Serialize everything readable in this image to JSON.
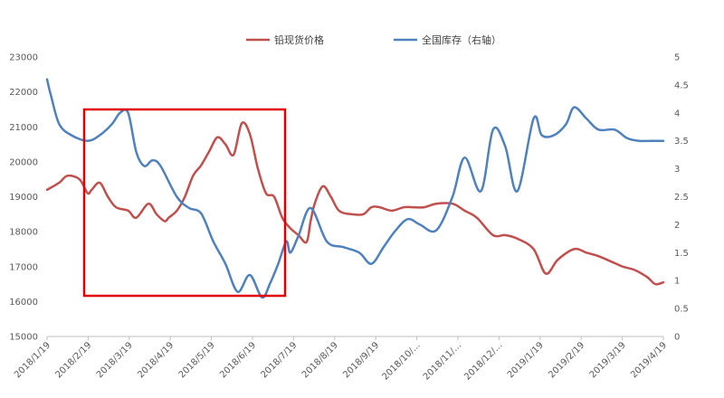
{
  "chart_data": {
    "type": "line",
    "title": "",
    "xlabel": "",
    "ylabel": "",
    "ylim": [
      15000,
      23000
    ],
    "y2lim": [
      0,
      5
    ],
    "yticks": [
      15000,
      16000,
      17000,
      18000,
      19000,
      20000,
      21000,
      22000,
      23000
    ],
    "y2ticks": [
      "0",
      "0.5",
      "1",
      "1.5",
      "2",
      "2.5",
      "3",
      "3.5",
      "4",
      "4.5",
      "5"
    ],
    "x_tick_labels": [
      "2018/1/19",
      "2018/2/19",
      "2018/3/19",
      "2018/4/19",
      "2018/5/19",
      "2018/6/19",
      "2018/7/19",
      "2018/8/19",
      "2018/9/19",
      "2018/10/...",
      "2018/11/...",
      "2018/12/...",
      "2019/1/19",
      "2019/2/19",
      "2019/3/19",
      "2019/4/19"
    ],
    "grid": false,
    "legend_position": "top",
    "series": [
      {
        "name": "铅现货价格",
        "axis": "left",
        "color": "#C0504D",
        "x": [
          0,
          0.3,
          0.5,
          0.8,
          1,
          1.1,
          1.3,
          1.5,
          1.7,
          2,
          2.2,
          2.5,
          2.7,
          2.9,
          3,
          3.2,
          3.4,
          3.6,
          3.8,
          4,
          4.2,
          4.4,
          4.6,
          4.8,
          5,
          5.2,
          5.4,
          5.6,
          5.8,
          6,
          6.2,
          6.4,
          6.5,
          6.6,
          6.8,
          7,
          7.2,
          7.5,
          7.8,
          8,
          8.2,
          8.5,
          8.8,
          9,
          9.3,
          9.6,
          10,
          10.3,
          10.6,
          11,
          11.3,
          11.6,
          12,
          12.3,
          12.6,
          13,
          13.3,
          13.6,
          14,
          14.2,
          14.5,
          14.8,
          15,
          15.2
        ],
        "values": [
          19200,
          19400,
          19600,
          19500,
          19100,
          19200,
          19400,
          19000,
          18700,
          18600,
          18400,
          18800,
          18500,
          18300,
          18400,
          18600,
          19000,
          19600,
          19900,
          20300,
          20700,
          20500,
          20200,
          21100,
          20800,
          19800,
          19100,
          19000,
          18400,
          18100,
          17900,
          17700,
          18300,
          18800,
          19300,
          19000,
          18600,
          18500,
          18500,
          18700,
          18700,
          18600,
          18700,
          18700,
          18700,
          18800,
          18800,
          18600,
          18400,
          17900,
          17900,
          17800,
          17500,
          16800,
          17200,
          17500,
          17400,
          17300,
          17100,
          17000,
          16900,
          16700,
          16500,
          16550
        ]
      },
      {
        "name": "全国库存（右轴）",
        "axis": "right",
        "color": "#4F81BD",
        "x": [
          0,
          0.1,
          0.3,
          0.6,
          1,
          1.3,
          1.6,
          1.8,
          2,
          2.2,
          2.4,
          2.6,
          2.8,
          3.2,
          3.5,
          3.8,
          4.1,
          4.4,
          4.7,
          5,
          5.3,
          5.5,
          5.7,
          5.9,
          6,
          6.2,
          6.5,
          6.9,
          7.3,
          7.7,
          8,
          8.3,
          8.6,
          8.9,
          9.2,
          9.6,
          10,
          10.3,
          10.7,
          11,
          11.3,
          11.6,
          12,
          12.2,
          12.5,
          12.8,
          13,
          13.3,
          13.6,
          14,
          14.3,
          14.6,
          15,
          15.2
        ],
        "values": [
          4.6,
          4.3,
          3.8,
          3.6,
          3.5,
          3.6,
          3.8,
          4,
          4,
          3.3,
          3.05,
          3.15,
          3.05,
          2.5,
          2.3,
          2.2,
          1.7,
          1.3,
          0.8,
          1.1,
          0.7,
          0.95,
          1.3,
          1.7,
          1.5,
          1.8,
          2.3,
          1.7,
          1.6,
          1.5,
          1.3,
          1.6,
          1.9,
          2.1,
          2,
          1.9,
          2.5,
          3.2,
          2.6,
          3.7,
          3.4,
          2.6,
          3.9,
          3.6,
          3.6,
          3.8,
          4.1,
          3.9,
          3.7,
          3.7,
          3.55,
          3.5,
          3.5,
          3.5
        ]
      }
    ]
  },
  "highlight_box": {
    "color": "#E00000"
  }
}
